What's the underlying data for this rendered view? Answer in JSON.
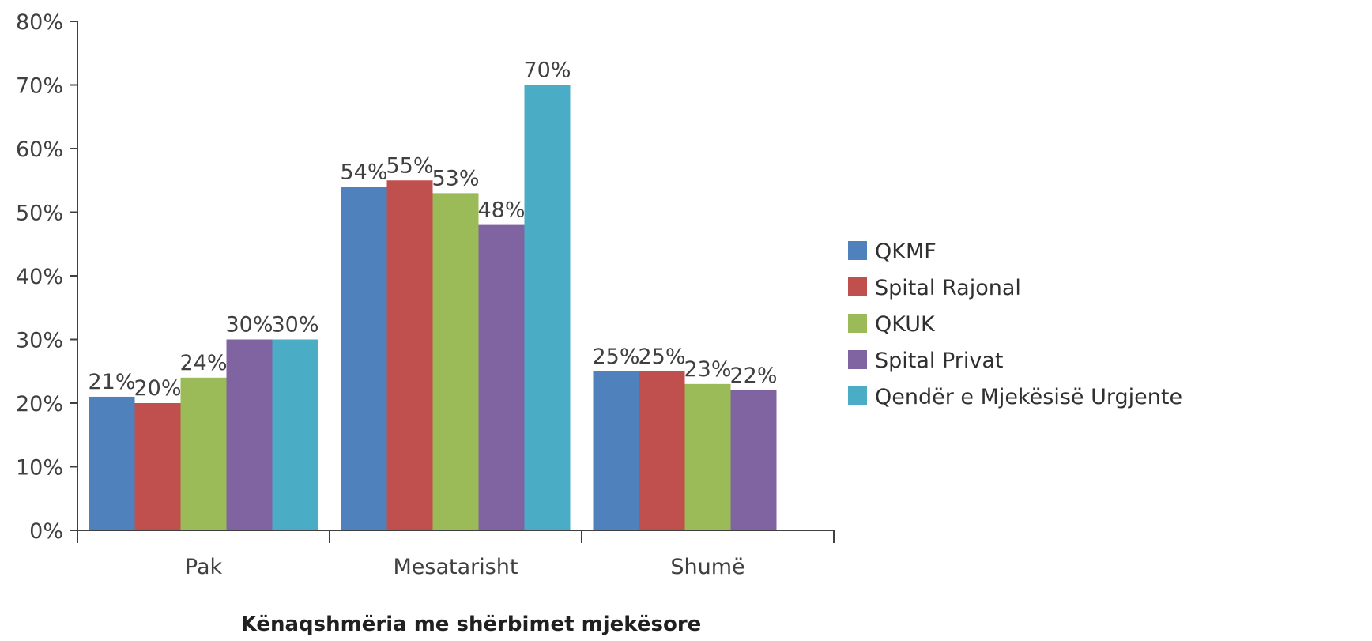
{
  "chart_data": {
    "type": "bar",
    "title": "",
    "xlabel": "Kënaqshmëria me shërbimet mjekësore",
    "ylabel": "",
    "ylim": [
      0,
      80
    ],
    "yticks": [
      0,
      10,
      20,
      30,
      40,
      50,
      60,
      70,
      80
    ],
    "ytick_labels": [
      "0%",
      "10%",
      "20%",
      "30%",
      "40%",
      "50%",
      "60%",
      "70%",
      "80%"
    ],
    "grid": false,
    "legend_position": "right",
    "categories": [
      "Pak",
      "Mesatarisht",
      "Shumë"
    ],
    "series": [
      {
        "name": "QKMF",
        "color": "#4f81bd",
        "values": [
          21,
          54,
          25
        ],
        "labels": [
          "21%",
          "54%",
          "25%"
        ]
      },
      {
        "name": "Spital Rajonal",
        "color": "#c0504d",
        "values": [
          20,
          55,
          25
        ],
        "labels": [
          "20%",
          "55%",
          "25%"
        ]
      },
      {
        "name": "QKUK",
        "color": "#9bbb59",
        "values": [
          24,
          53,
          23
        ],
        "labels": [
          "24%",
          "53%",
          "23%"
        ]
      },
      {
        "name": "Spital Privat",
        "color": "#8064a2",
        "values": [
          30,
          48,
          22
        ],
        "labels": [
          "30%",
          "48%",
          "22%"
        ]
      },
      {
        "name": "Qendër e Mjekësisë Urgjente",
        "color": "#4bacc6",
        "values": [
          30,
          70,
          null
        ],
        "labels": [
          "30%",
          "70%",
          ""
        ]
      }
    ]
  }
}
